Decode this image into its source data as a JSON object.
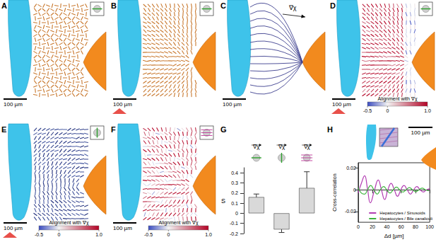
{
  "panels": [
    {
      "panel": "A",
      "scale_bar": "100 µm"
    },
    {
      "panel": "B",
      "scale_bar": "100 µm"
    },
    {
      "panel": "C",
      "scale_bar": "100 µm",
      "annotation": "∇χ"
    },
    {
      "panel": "D",
      "scale_bar": "100 µm",
      "colorbar": {
        "title": "Alignment with ∇χ",
        "range": [
          -0.5,
          1
        ],
        "ticks": [
          -0.5,
          0,
          {
            "value": 1,
            "label": "1.0"
          }
        ]
      }
    },
    {
      "panel": "E",
      "scale_bar": "100 µm",
      "colorbar": {
        "title": "Alignment with ∇χ",
        "range": [
          -0.5,
          1
        ],
        "ticks": [
          -0.5,
          0,
          {
            "value": 1,
            "label": "1.0"
          }
        ]
      }
    },
    {
      "panel": "F",
      "scale_bar": "100 µm",
      "colorbar": {
        "title": "Alignment with ∇χ",
        "range": [
          -0.5,
          1
        ],
        "ticks": [
          -0.5,
          0,
          {
            "value": 1,
            "label": "1.0"
          }
        ]
      }
    }
  ],
  "chart_data": [
    {
      "panel": "G",
      "type": "bar",
      "categories": [
        "∇χ",
        "∇χ",
        "∇χ"
      ],
      "values": [
        0.16,
        -0.16,
        0.25
      ],
      "errors": [
        0.03,
        0.03,
        0.16
      ],
      "y_label": "S",
      "ylim": [
        -0.2,
        0.45
      ],
      "yticks": [
        -0.2,
        -0.1,
        0,
        0.1,
        0.2,
        0.3,
        0.4
      ],
      "color": "#d9d9d9"
    },
    {
      "panel": "H",
      "type": "line",
      "scale_bar": "100 µm",
      "x_label": "Δd [µm]",
      "y_label": "Cross-correlation",
      "xlim": [
        0,
        100
      ],
      "xticks": [
        0,
        20,
        40,
        60,
        80,
        100
      ],
      "ylim": [
        -0.03,
        0.025
      ],
      "yticks": [
        -0.02,
        0,
        0.02
      ],
      "legend": "lower right",
      "series": [
        {
          "name": "Hepatocytes / Sinusoids",
          "color": "#b23cb2",
          "x": [
            0,
            4.5,
            9,
            13,
            17,
            22.5,
            28,
            32.5,
            37,
            41.5,
            46,
            50.5,
            55,
            59.5,
            64,
            68.5,
            73,
            77.5,
            82,
            86.5,
            91,
            95.5,
            100
          ],
          "values": [
            -0.003,
            0.006,
            0.013,
            0.001,
            -0.012,
            -0.001,
            0.009,
            0,
            -0.009,
            0,
            0.006,
            0,
            -0.006,
            0,
            0.004,
            0,
            -0.004,
            0,
            0.003,
            0,
            -0.002,
            0,
            0.001
          ]
        },
        {
          "name": "Hepatocytes / Bile canaliculi",
          "color": "#3cb43c",
          "x": [
            0,
            4.5,
            9,
            13,
            17.5,
            22,
            26.5,
            31,
            35.5,
            40,
            44.5,
            49,
            53.5,
            58,
            62.5,
            67,
            71.5,
            76,
            80.5,
            85,
            89.5,
            94,
            98.5
          ],
          "values": [
            0.002,
            -0.003,
            -0.004,
            0,
            0.004,
            0,
            -0.004,
            0,
            0.003,
            0,
            -0.003,
            0,
            0.0025,
            0,
            -0.002,
            0,
            0.002,
            0,
            -0.0015,
            0,
            0.0015,
            0,
            -0.001
          ]
        }
      ]
    }
  ]
}
